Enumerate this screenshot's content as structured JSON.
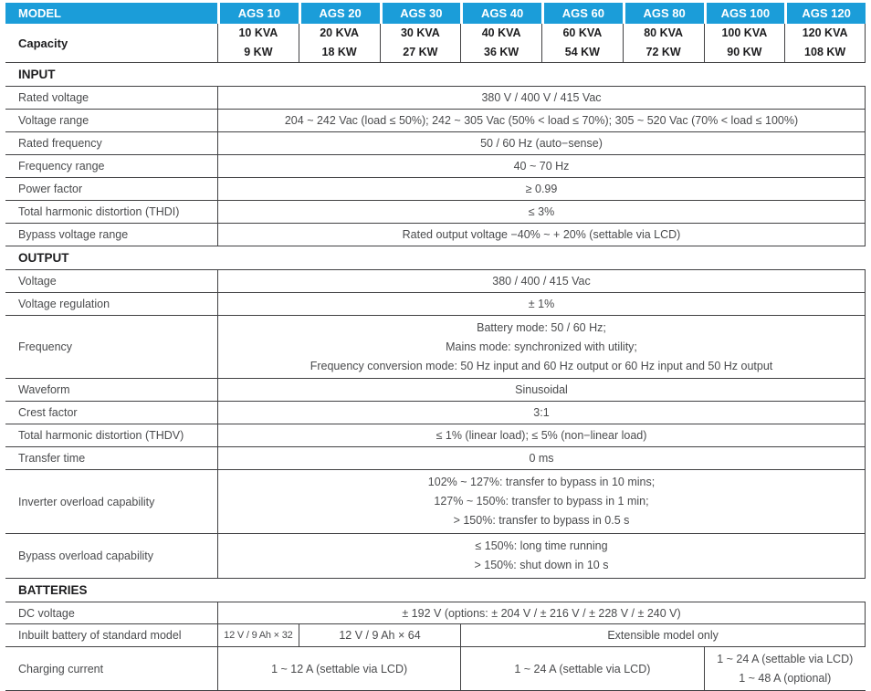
{
  "colors": {
    "header_blue": "#1b9dd9",
    "body_text": "#4a4b4d",
    "line": "#414143"
  },
  "header": {
    "model_label": "MODEL",
    "models": [
      "AGS 10",
      "AGS 20",
      "AGS 30",
      "AGS 40",
      "AGS 60",
      "AGS 80",
      "AGS 100",
      "AGS 120"
    ]
  },
  "capacity": {
    "label": "Capacity",
    "values": [
      {
        "kva": "10 KVA",
        "kw": "9 KW"
      },
      {
        "kva": "20 KVA",
        "kw": "18 KW"
      },
      {
        "kva": "30 KVA",
        "kw": "27 KW"
      },
      {
        "kva": "40 KVA",
        "kw": "36 KW"
      },
      {
        "kva": "60 KVA",
        "kw": "54 KW"
      },
      {
        "kva": "80 KVA",
        "kw": "72 KW"
      },
      {
        "kva": "100 KVA",
        "kw": "90 KW"
      },
      {
        "kva": "120 KVA",
        "kw": "108 KW"
      }
    ]
  },
  "input": {
    "title": "INPUT",
    "rows": [
      {
        "label": "Rated voltage",
        "lines": [
          "380 V / 400 V / 415 Vac"
        ]
      },
      {
        "label": "Voltage range",
        "lines": [
          "204 ~ 242 Vac (load ≤ 50%); 242 ~ 305 Vac (50% < load ≤ 70%); 305 ~ 520 Vac (70% < load ≤ 100%)"
        ]
      },
      {
        "label": "Rated frequency",
        "lines": [
          "50 / 60 Hz (auto−sense)"
        ]
      },
      {
        "label": "Frequency range",
        "lines": [
          "40 ~ 70 Hz"
        ]
      },
      {
        "label": "Power factor",
        "lines": [
          "≥ 0.99"
        ]
      },
      {
        "label": "Total harmonic distortion (THDI)",
        "lines": [
          "≤ 3%"
        ]
      },
      {
        "label": "Bypass voltage range",
        "lines": [
          "Rated output voltage −40% ~ + 20% (settable via LCD)"
        ]
      }
    ]
  },
  "output": {
    "title": "OUTPUT",
    "rows": [
      {
        "label": "Voltage",
        "lines": [
          "380 / 400 / 415 Vac"
        ]
      },
      {
        "label": "Voltage regulation",
        "lines": [
          "± 1%"
        ]
      },
      {
        "label": "Frequency",
        "lines": [
          "Battery mode: 50 / 60 Hz;",
          "Mains mode: synchronized with utility;",
          "Frequency conversion mode: 50 Hz input and 60 Hz output or 60 Hz input and 50 Hz output"
        ]
      },
      {
        "label": "Waveform",
        "lines": [
          "Sinusoidal"
        ]
      },
      {
        "label": "Crest factor",
        "lines": [
          "3:1"
        ]
      },
      {
        "label": "Total harmonic distortion (THDV)",
        "lines": [
          "≤ 1% (linear load); ≤ 5% (non−linear load)"
        ]
      },
      {
        "label": "Transfer time",
        "lines": [
          "0 ms"
        ]
      },
      {
        "label": "Inverter overload capability",
        "lines": [
          "102% ~ 127%: transfer to bypass in 10 mins;",
          "127% ~ 150%: transfer to bypass in 1 min;",
          "> 150%: transfer to bypass in 0.5 s"
        ]
      },
      {
        "label": "Bypass overload capability",
        "lines": [
          "≤ 150%: long time running",
          "> 150%: shut down in 10 s"
        ]
      }
    ]
  },
  "batteries": {
    "title": "BATTERIES",
    "dc_voltage": {
      "label": "DC voltage",
      "value": "± 192 V (options: ± 204 V / ± 216 V / ± 228 V / ± 240 V)"
    },
    "inbuilt": {
      "label": "Inbuilt battery of standard model",
      "cells": [
        {
          "text": "12 V / 9 Ah × 32",
          "span": 1
        },
        {
          "text": "12 V / 9 Ah × 64",
          "span": 2
        },
        {
          "text": "Extensible model only",
          "span": 5
        }
      ]
    },
    "charging": {
      "label": "Charging current",
      "cells": [
        {
          "text": "1 ~ 12 A (settable via LCD)",
          "span": 3
        },
        {
          "text": "1 ~ 24 A (settable via LCD)",
          "span": 3
        },
        {
          "lines": [
            "1 ~ 24 A (settable via LCD)",
            "1 ~ 48 A (optional)"
          ],
          "span": 2
        }
      ]
    }
  }
}
